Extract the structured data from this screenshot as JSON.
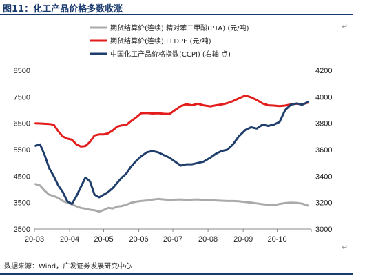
{
  "header": {
    "title": "图11：化工产品价格多数收涨",
    "return_mark": "↵"
  },
  "footer": {
    "source": "数据来源：Wind，广发证券发展研究中心",
    "return_mark": "↵"
  },
  "chart_data": {
    "type": "line",
    "title": "",
    "x_ticks": [
      "20-03",
      "20-04",
      "20-05",
      "20-06",
      "20-07",
      "20-08",
      "20-09",
      "20-10"
    ],
    "x_range": [
      "2020-03-01",
      "2020-10-31"
    ],
    "y_left": {
      "min": 2500,
      "max": 8500,
      "ticks": [
        2500,
        3500,
        4500,
        5500,
        6500,
        7500,
        8500
      ]
    },
    "y_right": {
      "min": 3000,
      "max": 4200,
      "ticks": [
        3000,
        3200,
        3400,
        3600,
        3800,
        4000,
        4200
      ]
    },
    "grid": false,
    "legend_position": "top-center",
    "series": [
      {
        "name": "期货结算价(连续):精对苯二甲酸(PTA) (元/吨)",
        "color": "#aaaaaa",
        "axis": "left",
        "points": [
          [
            "2020-03-02",
            4200
          ],
          [
            "2020-03-06",
            4150
          ],
          [
            "2020-03-10",
            3950
          ],
          [
            "2020-03-14",
            3800
          ],
          [
            "2020-03-18",
            3750
          ],
          [
            "2020-03-22",
            3680
          ],
          [
            "2020-03-26",
            3560
          ],
          [
            "2020-03-30",
            3500
          ],
          [
            "2020-04-03",
            3430
          ],
          [
            "2020-04-07",
            3360
          ],
          [
            "2020-04-11",
            3300
          ],
          [
            "2020-04-15",
            3270
          ],
          [
            "2020-04-19",
            3230
          ],
          [
            "2020-04-23",
            3210
          ],
          [
            "2020-04-27",
            3160
          ],
          [
            "2020-05-01",
            3220
          ],
          [
            "2020-05-05",
            3300
          ],
          [
            "2020-05-09",
            3280
          ],
          [
            "2020-05-13",
            3350
          ],
          [
            "2020-05-17",
            3370
          ],
          [
            "2020-05-21",
            3420
          ],
          [
            "2020-05-25",
            3490
          ],
          [
            "2020-05-29",
            3530
          ],
          [
            "2020-06-03",
            3560
          ],
          [
            "2020-06-08",
            3580
          ],
          [
            "2020-06-13",
            3610
          ],
          [
            "2020-06-18",
            3640
          ],
          [
            "2020-06-23",
            3620
          ],
          [
            "2020-06-28",
            3600
          ],
          [
            "2020-07-03",
            3610
          ],
          [
            "2020-07-08",
            3620
          ],
          [
            "2020-07-13",
            3600
          ],
          [
            "2020-07-18",
            3610
          ],
          [
            "2020-07-23",
            3620
          ],
          [
            "2020-07-28",
            3600
          ],
          [
            "2020-08-03",
            3590
          ],
          [
            "2020-08-08",
            3580
          ],
          [
            "2020-08-13",
            3570
          ],
          [
            "2020-08-18",
            3560
          ],
          [
            "2020-08-23",
            3560
          ],
          [
            "2020-08-28",
            3550
          ],
          [
            "2020-09-03",
            3520
          ],
          [
            "2020-09-08",
            3500
          ],
          [
            "2020-09-13",
            3470
          ],
          [
            "2020-09-18",
            3440
          ],
          [
            "2020-09-23",
            3420
          ],
          [
            "2020-09-28",
            3400
          ],
          [
            "2020-10-03",
            3450
          ],
          [
            "2020-10-08",
            3480
          ],
          [
            "2020-10-13",
            3500
          ],
          [
            "2020-10-18",
            3490
          ],
          [
            "2020-10-23",
            3460
          ],
          [
            "2020-10-28",
            3390
          ]
        ]
      },
      {
        "name": "期货结算价(连续):LLDPE (元/吨)",
        "color": "#e31c1c",
        "axis": "left",
        "points": [
          [
            "2020-03-02",
            6500
          ],
          [
            "2020-03-06",
            6490
          ],
          [
            "2020-03-10",
            6480
          ],
          [
            "2020-03-14",
            6470
          ],
          [
            "2020-03-18",
            6450
          ],
          [
            "2020-03-22",
            6200
          ],
          [
            "2020-03-26",
            6000
          ],
          [
            "2020-03-30",
            5920
          ],
          [
            "2020-04-03",
            5880
          ],
          [
            "2020-04-07",
            5700
          ],
          [
            "2020-04-11",
            5620
          ],
          [
            "2020-04-15",
            5640
          ],
          [
            "2020-04-19",
            5800
          ],
          [
            "2020-04-23",
            6040
          ],
          [
            "2020-04-27",
            6080
          ],
          [
            "2020-05-01",
            6080
          ],
          [
            "2020-05-05",
            6120
          ],
          [
            "2020-05-09",
            6230
          ],
          [
            "2020-05-13",
            6380
          ],
          [
            "2020-05-17",
            6420
          ],
          [
            "2020-05-21",
            6440
          ],
          [
            "2020-05-25",
            6580
          ],
          [
            "2020-05-29",
            6700
          ],
          [
            "2020-06-03",
            6880
          ],
          [
            "2020-06-08",
            6890
          ],
          [
            "2020-06-13",
            6870
          ],
          [
            "2020-06-18",
            6880
          ],
          [
            "2020-06-23",
            6860
          ],
          [
            "2020-06-28",
            6850
          ],
          [
            "2020-07-03",
            7000
          ],
          [
            "2020-07-08",
            7150
          ],
          [
            "2020-07-13",
            7220
          ],
          [
            "2020-07-18",
            7180
          ],
          [
            "2020-07-23",
            7240
          ],
          [
            "2020-07-28",
            7180
          ],
          [
            "2020-08-03",
            7140
          ],
          [
            "2020-08-08",
            7180
          ],
          [
            "2020-08-13",
            7210
          ],
          [
            "2020-08-18",
            7260
          ],
          [
            "2020-08-23",
            7340
          ],
          [
            "2020-08-28",
            7440
          ],
          [
            "2020-09-03",
            7550
          ],
          [
            "2020-09-08",
            7480
          ],
          [
            "2020-09-13",
            7380
          ],
          [
            "2020-09-18",
            7250
          ],
          [
            "2020-09-23",
            7180
          ],
          [
            "2020-09-28",
            7170
          ],
          [
            "2020-10-03",
            7150
          ],
          [
            "2020-10-08",
            7170
          ],
          [
            "2020-10-13",
            7210
          ],
          [
            "2020-10-18",
            7240
          ],
          [
            "2020-10-23",
            7220
          ],
          [
            "2020-10-28",
            7280
          ]
        ]
      },
      {
        "name": "中国化工产品价格指数(CCPI) (右轴 点)",
        "color": "#1f3e6b",
        "axis": "right",
        "points": [
          [
            "2020-03-02",
            3630
          ],
          [
            "2020-03-06",
            3640
          ],
          [
            "2020-03-10",
            3560
          ],
          [
            "2020-03-14",
            3460
          ],
          [
            "2020-03-18",
            3400
          ],
          [
            "2020-03-22",
            3330
          ],
          [
            "2020-03-26",
            3280
          ],
          [
            "2020-03-30",
            3210
          ],
          [
            "2020-04-03",
            3190
          ],
          [
            "2020-04-07",
            3250
          ],
          [
            "2020-04-11",
            3320
          ],
          [
            "2020-04-15",
            3390
          ],
          [
            "2020-04-19",
            3360
          ],
          [
            "2020-04-23",
            3260
          ],
          [
            "2020-04-27",
            3240
          ],
          [
            "2020-05-01",
            3260
          ],
          [
            "2020-05-05",
            3280
          ],
          [
            "2020-05-09",
            3310
          ],
          [
            "2020-05-13",
            3350
          ],
          [
            "2020-05-17",
            3390
          ],
          [
            "2020-05-21",
            3420
          ],
          [
            "2020-05-25",
            3470
          ],
          [
            "2020-05-29",
            3510
          ],
          [
            "2020-06-03",
            3550
          ],
          [
            "2020-06-08",
            3580
          ],
          [
            "2020-06-13",
            3590
          ],
          [
            "2020-06-18",
            3580
          ],
          [
            "2020-06-23",
            3560
          ],
          [
            "2020-06-28",
            3540
          ],
          [
            "2020-07-03",
            3510
          ],
          [
            "2020-07-08",
            3480
          ],
          [
            "2020-07-13",
            3490
          ],
          [
            "2020-07-18",
            3490
          ],
          [
            "2020-07-23",
            3500
          ],
          [
            "2020-07-28",
            3510
          ],
          [
            "2020-08-03",
            3540
          ],
          [
            "2020-08-08",
            3570
          ],
          [
            "2020-08-13",
            3590
          ],
          [
            "2020-08-18",
            3600
          ],
          [
            "2020-08-23",
            3640
          ],
          [
            "2020-08-28",
            3700
          ],
          [
            "2020-09-03",
            3750
          ],
          [
            "2020-09-08",
            3770
          ],
          [
            "2020-09-13",
            3760
          ],
          [
            "2020-09-18",
            3790
          ],
          [
            "2020-09-23",
            3780
          ],
          [
            "2020-09-28",
            3790
          ],
          [
            "2020-10-03",
            3810
          ],
          [
            "2020-10-08",
            3900
          ],
          [
            "2020-10-13",
            3940
          ],
          [
            "2020-10-18",
            3950
          ],
          [
            "2020-10-23",
            3940
          ],
          [
            "2020-10-28",
            3960
          ]
        ]
      }
    ]
  }
}
